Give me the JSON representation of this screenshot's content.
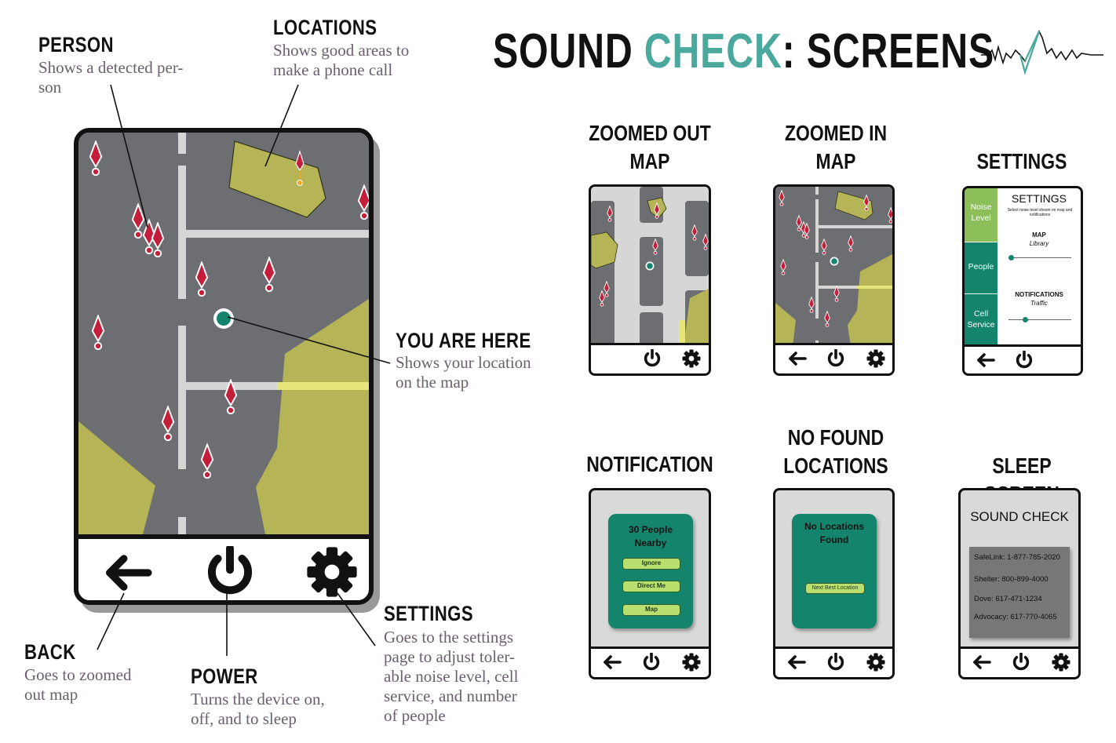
{
  "title": {
    "part1": "SOUND ",
    "part2": "CHECK",
    "part3": ": SCREENS"
  },
  "callouts": {
    "person": {
      "label": "PERSON",
      "desc1": "Shows a detected per-",
      "desc2": "son"
    },
    "locations": {
      "label": "LOCATIONS",
      "desc1": "Shows good areas to",
      "desc2": "make a phone call"
    },
    "you_are_here": {
      "label": "YOU ARE HERE",
      "desc1": "Shows your location",
      "desc2": "on the map"
    },
    "settings": {
      "label": "SETTINGS",
      "desc1": "Goes to the settings",
      "desc2": "page to adjust toler-",
      "desc3": "able noise level, cell",
      "desc4": "service, and number",
      "desc5": "of people"
    },
    "back": {
      "label": "BACK",
      "desc1": "Goes to zoomed",
      "desc2": "out map"
    },
    "power": {
      "label": "POWER",
      "desc1": "Turns the device on,",
      "desc2": "off, and to sleep"
    }
  },
  "screens": {
    "zoomed_out": {
      "line1": "ZOOMED OUT",
      "line2": "MAP"
    },
    "zoomed_in": {
      "line1": "ZOOMED IN",
      "line2": "MAP"
    },
    "settings": {
      "line1": "SETTINGS"
    },
    "notification": {
      "line1": "NOTIFICATION"
    },
    "no_found": {
      "line1": "NO FOUND",
      "line2": "LOCATIONS"
    },
    "sleep": {
      "line1": "SLEEP SCREEN"
    }
  },
  "settings_screen": {
    "tabs": [
      "Noise Level",
      "People",
      "Cell Service"
    ],
    "heading": "SETTINGS",
    "subheading": "Select noise level shown on map and notifications",
    "map_label": "MAP",
    "map_value": "Library",
    "map_level": 0.0,
    "notif_label": "NOTIFICATIONS",
    "notif_value": "Traffic",
    "notif_level": 0.25
  },
  "notification_screen": {
    "title": "30 People Nearby",
    "buttons": [
      "Ignore",
      "Direct Me",
      "Map"
    ]
  },
  "no_found_screen": {
    "title": "No Locations Found",
    "button": "Next Best Location"
  },
  "sleep_screen": {
    "title": "SOUND CHECK",
    "contacts": [
      "SafeLink: 1-877-785-2020",
      "Shelter: 800-899-4000",
      "Dove: 617-471-1234",
      "Advocacy: 617-770-4065"
    ]
  },
  "colors": {
    "road": "#6d6e71",
    "street": "#d6d6d6",
    "zone": "#b5b457",
    "pin": "#c41e3a",
    "teal": "#14856c",
    "accent": "#4aa89c"
  },
  "icons": [
    "back-arrow-icon",
    "power-icon",
    "gear-icon",
    "person-pin-icon",
    "location-marker-icon",
    "waveform-icon"
  ]
}
